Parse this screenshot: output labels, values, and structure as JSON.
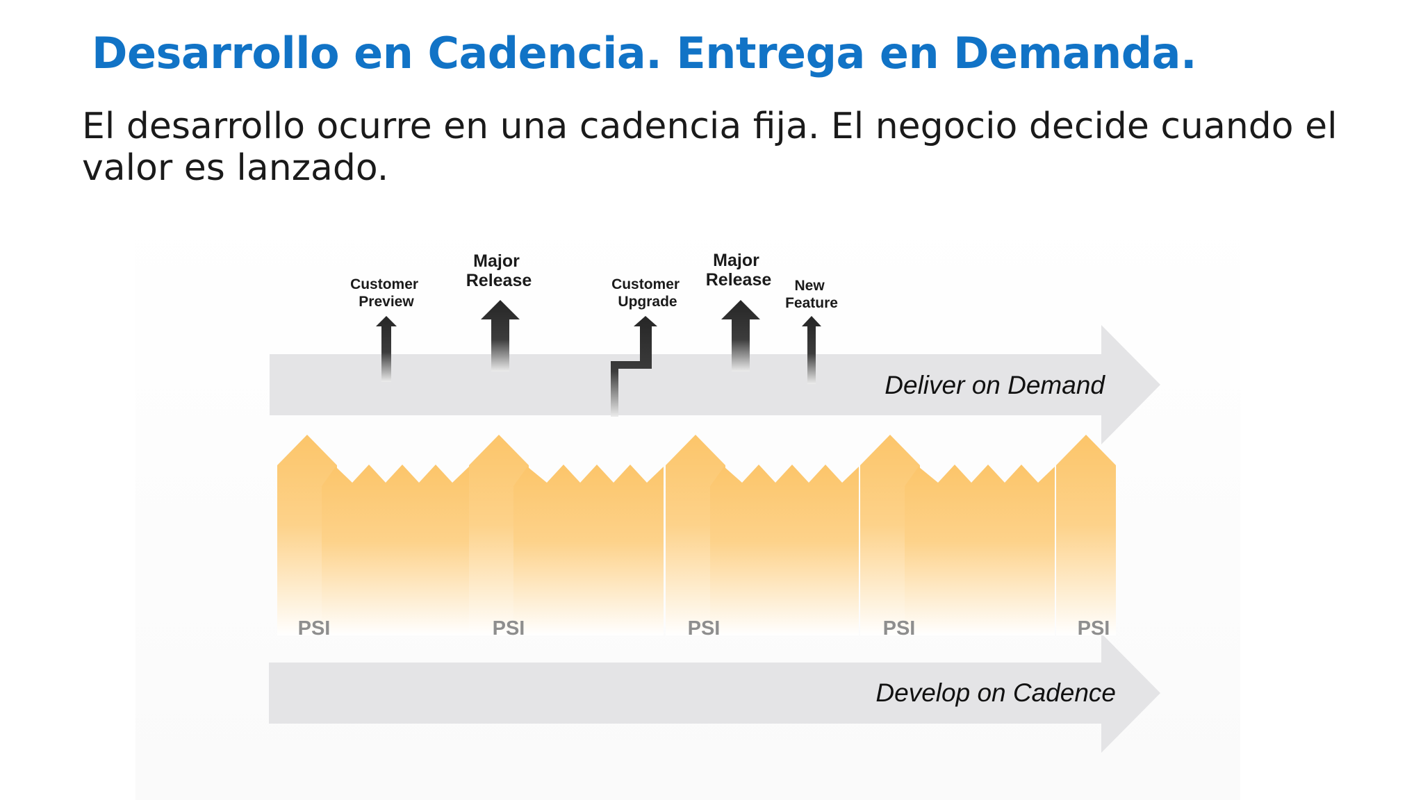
{
  "slide": {
    "title": "Desarrollo en Cadencia. Entrega en Demanda.",
    "subtitle": "El desarrollo ocurre en una cadencia fija. El negocio decide cuando el valor es lanzado."
  },
  "diagram": {
    "deliver_label": "Deliver on Demand",
    "develop_label": "Develop on Cadence",
    "events": [
      {
        "line1": "Customer",
        "line2": "Preview"
      },
      {
        "line1": "Major",
        "line2": "Release"
      },
      {
        "line1": "Customer",
        "line2": "Upgrade"
      },
      {
        "line1": "Major",
        "line2": "Release"
      },
      {
        "line1": "New",
        "line2": "Feature"
      }
    ],
    "increments": [
      "PSI",
      "PSI",
      "PSI",
      "PSI",
      "PSI"
    ],
    "colors": {
      "title": "#1173c6",
      "arrow_band": "#e4e4e6",
      "increment": "#fcc56a",
      "event_arrow": "#262626",
      "psi_label": "#8e8e8e"
    }
  }
}
